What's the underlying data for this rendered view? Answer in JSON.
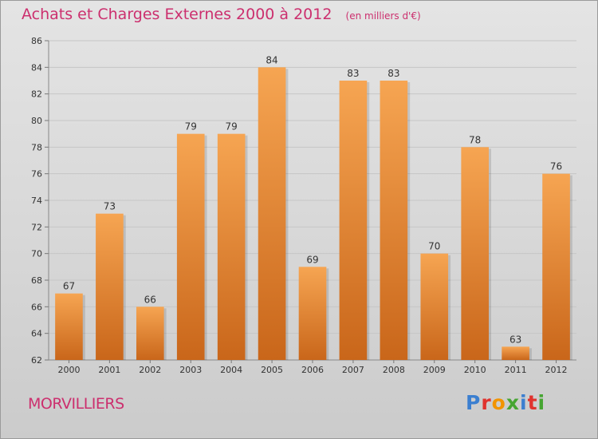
{
  "title": "Achats et Charges Externes 2000 à 2012",
  "unit": "(en milliers d'€)",
  "place": "MORVILLIERS",
  "brand": {
    "text": "Proxiti",
    "colors": [
      "#3b7fd0",
      "#e0332e",
      "#f29400",
      "#46a532",
      "#3b7fd0",
      "#e0332e",
      "#46a532"
    ]
  },
  "chart_data": {
    "type": "bar",
    "categories": [
      "2000",
      "2001",
      "2002",
      "2003",
      "2004",
      "2005",
      "2006",
      "2007",
      "2008",
      "2009",
      "2010",
      "2011",
      "2012"
    ],
    "values": [
      67,
      73,
      66,
      79,
      79,
      84,
      69,
      83,
      83,
      70,
      78,
      63,
      76
    ],
    "ylim": [
      62,
      86
    ],
    "yticks": [
      62,
      64,
      66,
      68,
      70,
      72,
      74,
      76,
      78,
      80,
      82,
      84,
      86
    ],
    "grid": true,
    "data_labels": true,
    "colors": {
      "bar_top": "#f6a552",
      "bar_bottom": "#c9661a",
      "grid": "#c6c6c6",
      "axis_text": "#333333"
    }
  }
}
